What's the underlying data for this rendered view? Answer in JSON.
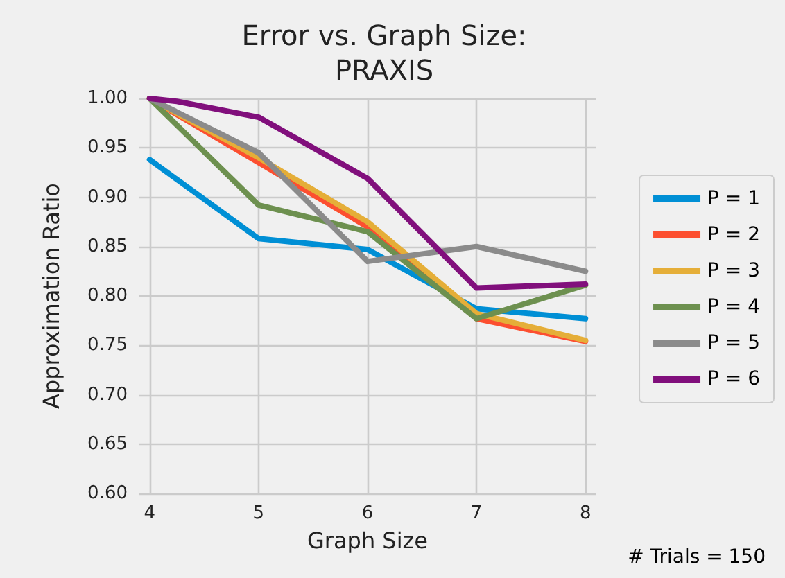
{
  "chart_data": {
    "type": "line",
    "title": "Error vs. Graph Size:\nPRAXIS",
    "xlabel": "Graph Size",
    "ylabel": "Approximation Ratio",
    "xlim": [
      3.9,
      8.1
    ],
    "xticks": [
      4,
      5,
      6,
      7,
      8
    ],
    "ylim": [
      0.6,
      1.0
    ],
    "yticks": [
      {
        "value": 0.6,
        "label": "0.60"
      },
      0.65,
      {
        "value": 0.7,
        "label": "0.70"
      },
      0.75,
      {
        "value": 0.8,
        "label": "0.80"
      },
      0.85,
      {
        "value": 0.9,
        "label": "0.90"
      },
      0.95,
      {
        "value": 1.0,
        "label": "1.00"
      }
    ],
    "grid": true,
    "legend": "right",
    "marker": "none",
    "line_style": "solid",
    "annotations": [
      "# Trials = 150"
    ],
    "series": [
      {
        "name": "P = 1",
        "color": "#008fd5",
        "x": [
          4,
          5,
          6,
          7,
          8
        ],
        "values": [
          0.938,
          0.858,
          0.847,
          0.787,
          0.777
        ]
      },
      {
        "name": "P = 2",
        "color": "#fc4f30",
        "x": [
          4,
          5,
          6,
          7,
          8
        ],
        "values": [
          1.0,
          0.935,
          0.87,
          0.777,
          0.754
        ]
      },
      {
        "name": "P = 3",
        "color": "#e5ae38",
        "x": [
          4,
          5,
          6,
          7,
          8
        ],
        "values": [
          1.0,
          0.94,
          0.875,
          0.782,
          0.755
        ]
      },
      {
        "name": "P = 4",
        "color": "#6d904f",
        "x": [
          4,
          5,
          6,
          7,
          8
        ],
        "values": [
          1.0,
          0.892,
          0.865,
          0.777,
          0.811
        ]
      },
      {
        "name": "P = 5",
        "color": "#8b8b8b",
        "x": [
          4,
          5,
          6,
          7,
          8
        ],
        "values": [
          1.0,
          0.945,
          0.835,
          0.85,
          0.825
        ]
      },
      {
        "name": "P = 6",
        "color": "#810f7c",
        "x": [
          4,
          4.25,
          5,
          6,
          7,
          8
        ],
        "values": [
          1.0,
          0.997,
          0.981,
          0.919,
          0.808,
          0.812
        ]
      }
    ]
  }
}
